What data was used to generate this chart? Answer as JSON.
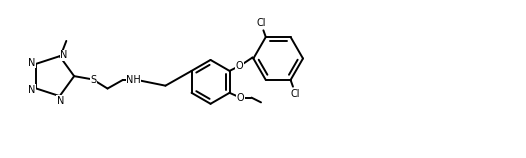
{
  "bg_color": "#ffffff",
  "line_color": "#000000",
  "lw": 1.4,
  "fs": 7.0,
  "figsize": [
    5.26,
    1.58
  ],
  "dpi": 100,
  "xlim": [
    0.0,
    5.5
  ],
  "ylim": [
    0.15,
    1.55
  ]
}
